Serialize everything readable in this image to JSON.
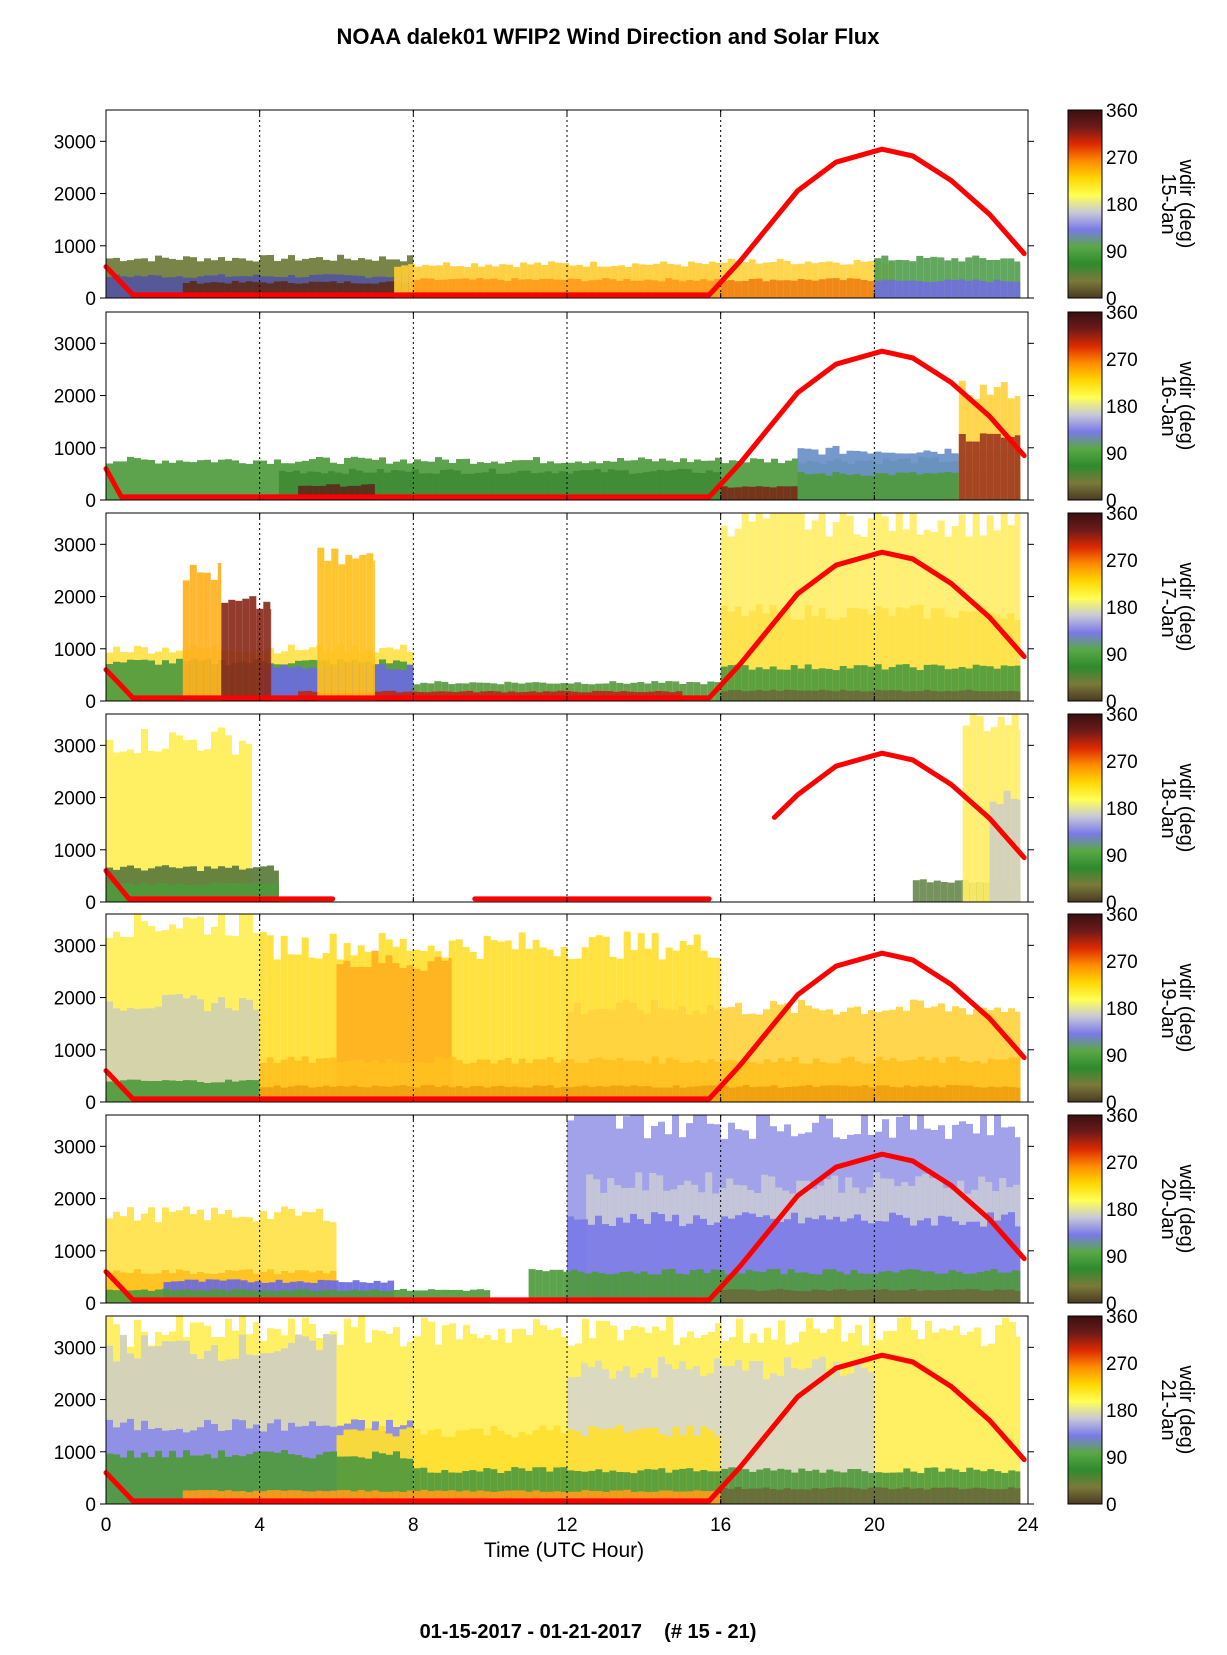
{
  "chart_data": {
    "type": "heatmap",
    "title": "NOAA dalek01 WFIP2 Wind Direction and Solar Flux",
    "footer": "01-15-2017 - 01-21-2017    (# 15 - 21)",
    "xlabel": "Time (UTC Hour)",
    "xlim": [
      0,
      24
    ],
    "xticks": [
      "0",
      "4",
      "8",
      "12",
      "16",
      "20",
      "24"
    ],
    "ylim": [
      0,
      3600
    ],
    "yticks": [
      "0",
      "1000",
      "2000",
      "3000"
    ],
    "grid": "vertical dotted at 4, 8, 12, 16, 20",
    "colorbar": {
      "label": "wdir (deg)",
      "ticks": [
        "0",
        "90",
        "180",
        "270",
        "360"
      ],
      "colors": [
        "#4a3a22",
        "#7a7a3a",
        "#2e8b2e",
        "#5aa846",
        "#7a7ae8",
        "#c8c8d8",
        "#ffff55",
        "#ffd700",
        "#ff8c00",
        "#dd2a00",
        "#6e1a1a",
        "#3a1010"
      ]
    },
    "panels": [
      {
        "day": "15-Jan",
        "series": "solar flux",
        "flux": {
          "x": [
            0,
            0.7,
            15.7,
            16.5,
            18,
            19,
            20.2,
            21,
            22,
            23,
            23.9
          ],
          "y": [
            600,
            60,
            60,
            700,
            2050,
            2600,
            2850,
            2720,
            2250,
            1600,
            850
          ]
        },
        "layers": [
          {
            "from": 0,
            "to": 8,
            "top": 760,
            "color": "#6e7a3a"
          },
          {
            "from": 0,
            "to": 8,
            "top": 420,
            "color": "#5555a0"
          },
          {
            "from": 2,
            "to": 8,
            "top": 300,
            "color": "#5a2a1a"
          },
          {
            "from": 7.5,
            "to": 16,
            "top": 650,
            "color": "#ffcc33"
          },
          {
            "from": 8,
            "to": 16,
            "top": 350,
            "color": "#ff9a1a"
          },
          {
            "from": 16,
            "to": 20.5,
            "top": 700,
            "color": "#ffd23f"
          },
          {
            "from": 16,
            "to": 20.5,
            "top": 350,
            "color": "#f08010"
          },
          {
            "from": 20,
            "to": 23.8,
            "top": 750,
            "color": "#55a050"
          },
          {
            "from": 20,
            "to": 23.8,
            "top": 330,
            "color": "#7070dd"
          }
        ]
      },
      {
        "day": "16-Jan",
        "series": "solar flux",
        "flux": {
          "x": [
            0,
            0.4,
            15.7,
            16.5,
            18,
            19,
            20.2,
            21,
            22,
            23,
            23.9
          ],
          "y": [
            600,
            60,
            60,
            700,
            2050,
            2600,
            2850,
            2720,
            2250,
            1600,
            850
          ]
        },
        "layers": [
          {
            "from": 0,
            "to": 23.8,
            "top": 760,
            "color": "#4f9a3d"
          },
          {
            "from": 4.5,
            "to": 16,
            "top": 550,
            "color": "#3f8a35"
          },
          {
            "from": 5,
            "to": 7,
            "top": 280,
            "color": "#5a2a1a"
          },
          {
            "from": 16,
            "to": 18,
            "top": 250,
            "color": "#7a2a18"
          },
          {
            "from": 18,
            "to": 23.8,
            "top": 950,
            "color": "#6a90c8"
          },
          {
            "from": 18,
            "to": 23.8,
            "top": 500,
            "color": "#4f9a3d"
          },
          {
            "from": 22.2,
            "to": 23.8,
            "top": 2100,
            "color": "#ffd23f"
          },
          {
            "from": 22.2,
            "to": 23.8,
            "top": 1200,
            "color": "#a03a20"
          }
        ]
      },
      {
        "day": "17-Jan",
        "series": "solar flux",
        "flux": {
          "x": [
            0,
            0.7,
            15.7,
            16.5,
            18,
            19,
            20.2,
            21,
            22,
            23,
            23.9
          ],
          "y": [
            600,
            60,
            60,
            700,
            2050,
            2600,
            2850,
            2720,
            2250,
            1600,
            850
          ]
        },
        "layers": [
          {
            "from": 0,
            "to": 8,
            "top": 1000,
            "color": "#ffe24a"
          },
          {
            "from": 0,
            "to": 8,
            "top": 750,
            "color": "#4f9a3d"
          },
          {
            "from": 4,
            "to": 8,
            "top": 650,
            "color": "#6a6ae0"
          },
          {
            "from": 8,
            "to": 16,
            "top": 350,
            "color": "#5a9a40"
          },
          {
            "from": 5,
            "to": 15,
            "top": 180,
            "color": "#b52a18"
          },
          {
            "from": 16,
            "to": 23.8,
            "top": 3450,
            "color": "#ffee66"
          },
          {
            "from": 16,
            "to": 23.8,
            "top": 1700,
            "color": "#ffe24a"
          },
          {
            "from": 16,
            "to": 23.8,
            "top": 650,
            "color": "#4f9a3d"
          },
          {
            "from": 16,
            "to": 23.8,
            "top": 200,
            "color": "#6a6a3a"
          },
          {
            "from": 2,
            "to": 3,
            "top": 2450,
            "color": "#ffb020"
          },
          {
            "from": 3,
            "to": 4.3,
            "top": 1850,
            "color": "#8a2a1a"
          },
          {
            "from": 5.5,
            "to": 7,
            "top": 2700,
            "color": "#ffc020"
          }
        ]
      },
      {
        "day": "18-Jan",
        "series": "solar flux",
        "flux": {
          "x": [
            17.4,
            18,
            19,
            20.2,
            21,
            22,
            23,
            23.9
          ],
          "y": [
            1620,
            2050,
            2600,
            2850,
            2720,
            2250,
            1600,
            850
          ]
        },
        "flux_night": [
          [
            0,
            0.6,
            600,
            60
          ],
          [
            0.6,
            5.9,
            60,
            60
          ],
          [
            9.6,
            15.7,
            60,
            60
          ]
        ],
        "layers": [
          {
            "from": 0,
            "to": 3.8,
            "top": 3100,
            "color": "#ffee55"
          },
          {
            "from": 0,
            "to": 4.5,
            "top": 650,
            "color": "#5a7a3a"
          },
          {
            "from": 0,
            "to": 4.5,
            "top": 350,
            "color": "#4f9a3d"
          },
          {
            "from": 21,
            "to": 23.8,
            "top": 400,
            "color": "#6a8a50"
          },
          {
            "from": 22.3,
            "to": 23.8,
            "top": 3500,
            "color": "#ffee66"
          },
          {
            "from": 23,
            "to": 23.8,
            "top": 2000,
            "color": "#d0d0c0"
          }
        ]
      },
      {
        "day": "19-Jan",
        "series": "solar flux",
        "flux": {
          "x": [
            0,
            0.7,
            15.7,
            16.5,
            18,
            19,
            20.2,
            21,
            22,
            23,
            23.9
          ],
          "y": [
            600,
            60,
            60,
            700,
            2050,
            2600,
            2850,
            2720,
            2250,
            1600,
            850
          ]
        },
        "layers": [
          {
            "from": 0,
            "to": 4,
            "top": 3450,
            "color": "#ffee55"
          },
          {
            "from": 0,
            "to": 4,
            "top": 1900,
            "color": "#d0d0b0"
          },
          {
            "from": 4,
            "to": 16,
            "top": 3000,
            "color": "#ffe030"
          },
          {
            "from": 6,
            "to": 9,
            "top": 2700,
            "color": "#ffb020"
          },
          {
            "from": 12,
            "to": 23.8,
            "top": 1800,
            "color": "#ffd23f"
          },
          {
            "from": 4,
            "to": 23.8,
            "top": 800,
            "color": "#ffc020"
          },
          {
            "from": 0,
            "to": 4,
            "top": 400,
            "color": "#4f9a3d"
          },
          {
            "from": 4,
            "to": 23.8,
            "top": 300,
            "color": "#f0a010"
          }
        ]
      },
      {
        "day": "20-Jan",
        "series": "solar flux",
        "flux": {
          "x": [
            0,
            0.7,
            15.7,
            16.5,
            18,
            19,
            20.2,
            21,
            22,
            23,
            23.9
          ],
          "y": [
            600,
            60,
            60,
            700,
            2050,
            2600,
            2850,
            2720,
            2250,
            1600,
            850
          ]
        },
        "layers": [
          {
            "from": 0,
            "to": 6,
            "top": 1700,
            "color": "#ffe24a"
          },
          {
            "from": 0,
            "to": 6,
            "top": 600,
            "color": "#ffc020"
          },
          {
            "from": 1.5,
            "to": 7.5,
            "top": 420,
            "color": "#6a6ae0"
          },
          {
            "from": 0,
            "to": 10,
            "top": 250,
            "color": "#4f9a3d"
          },
          {
            "from": 12,
            "to": 23.8,
            "top": 3450,
            "color": "#9a9ae8"
          },
          {
            "from": 12.5,
            "to": 23.8,
            "top": 2300,
            "color": "#c8c8d8"
          },
          {
            "from": 12,
            "to": 23.8,
            "top": 1600,
            "color": "#7a7ae8"
          },
          {
            "from": 11,
            "to": 23.8,
            "top": 600,
            "color": "#4f9a3d"
          },
          {
            "from": 16,
            "to": 23.8,
            "top": 250,
            "color": "#6a6a3a"
          }
        ]
      },
      {
        "day": "21-Jan",
        "series": "solar flux",
        "flux": {
          "x": [
            0,
            0.7,
            15.7,
            16.5,
            18,
            19,
            20.2,
            21,
            22,
            23,
            23.9
          ],
          "y": [
            600,
            60,
            60,
            700,
            2050,
            2600,
            2850,
            2720,
            2250,
            1600,
            850
          ]
        },
        "layers": [
          {
            "from": 0,
            "to": 23.8,
            "top": 3300,
            "color": "#ffee55"
          },
          {
            "from": 0,
            "to": 6,
            "top": 3000,
            "color": "#d0d0c0"
          },
          {
            "from": 12,
            "to": 20,
            "top": 2600,
            "color": "#d8d8c8"
          },
          {
            "from": 0,
            "to": 8,
            "top": 1500,
            "color": "#8a8ae8"
          },
          {
            "from": 6,
            "to": 16,
            "top": 1400,
            "color": "#ffe030"
          },
          {
            "from": 0,
            "to": 8,
            "top": 950,
            "color": "#4f9a3d"
          },
          {
            "from": 8,
            "to": 23.8,
            "top": 650,
            "color": "#4f9a3d"
          },
          {
            "from": 2,
            "to": 16,
            "top": 250,
            "color": "#ff9a1a"
          },
          {
            "from": 16,
            "to": 23.8,
            "top": 300,
            "color": "#6a6a3a"
          }
        ]
      }
    ]
  }
}
